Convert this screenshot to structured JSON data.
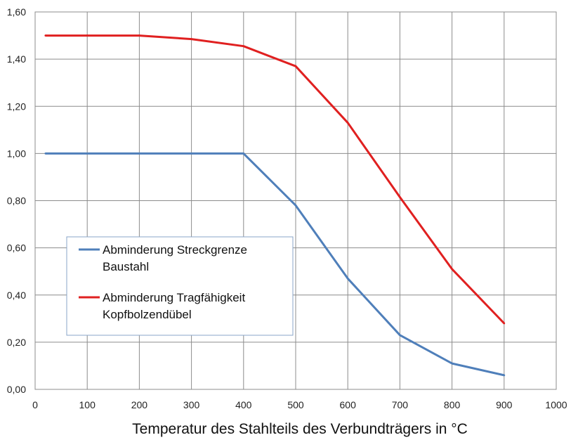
{
  "chart_data": {
    "type": "line",
    "title": "",
    "xlabel": "Temperatur des Stahlteils des Verbundträgers in °C",
    "ylabel": "",
    "xlim": [
      0,
      1000
    ],
    "ylim": [
      0,
      1.6
    ],
    "grid": true,
    "legend_position": "left-middle",
    "x_ticks": [
      0,
      100,
      200,
      300,
      400,
      500,
      600,
      700,
      800,
      900,
      1000
    ],
    "x_tick_labels": [
      "0",
      "100",
      "200",
      "300",
      "400",
      "500",
      "600",
      "700",
      "800",
      "900",
      "1000"
    ],
    "y_ticks": [
      0,
      0.2,
      0.4,
      0.6,
      0.8,
      1.0,
      1.2,
      1.4,
      1.6
    ],
    "y_tick_labels": [
      "0,00",
      "0,20",
      "0,40",
      "0,60",
      "0,80",
      "1,00",
      "1,20",
      "1,40",
      "1,60"
    ],
    "series": [
      {
        "name_lines": [
          "Abminderung Streckgrenze",
          "Baustahl"
        ],
        "color": "#4f7fba",
        "x": [
          20,
          100,
          200,
          300,
          400,
          500,
          600,
          700,
          800,
          900
        ],
        "y": [
          1.0,
          1.0,
          1.0,
          1.0,
          1.0,
          0.78,
          0.47,
          0.23,
          0.11,
          0.06
        ]
      },
      {
        "name_lines": [
          "Abminderung Tragfähigkeit",
          "Kopfbolzendübel"
        ],
        "color": "#e02020",
        "x": [
          20,
          100,
          200,
          300,
          400,
          500,
          600,
          700,
          800,
          900
        ],
        "y": [
          1.5,
          1.5,
          1.5,
          1.485,
          1.455,
          1.37,
          1.13,
          0.815,
          0.51,
          0.28
        ]
      }
    ]
  }
}
